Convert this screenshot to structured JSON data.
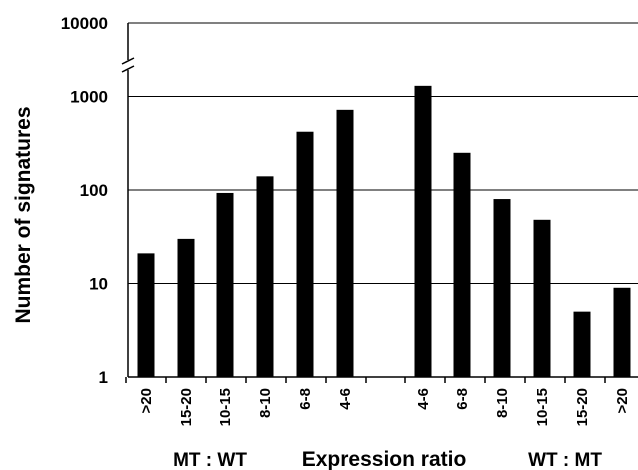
{
  "chart_data": {
    "type": "bar",
    "ylabel": "Number of signatures",
    "xlabel": "Expression ratio",
    "group_labels": [
      "MT : WT",
      "WT : MT"
    ],
    "scale": "log",
    "ylim": [
      1,
      10000
    ],
    "axis_break": true,
    "y_ticks": [
      "1",
      "10",
      "100",
      "1000",
      "10000"
    ],
    "grid": true,
    "colors": {
      "bar": "#000000",
      "axis": "#000000",
      "grid": "#000000"
    },
    "groups": [
      {
        "label": "MT : WT",
        "categories": [
          ">20",
          "15-20",
          "10-15",
          "8-10",
          "6-8",
          "4-6"
        ],
        "values": [
          21,
          30,
          93,
          140,
          420,
          720
        ]
      },
      {
        "label": "WT : MT",
        "categories": [
          "4-6",
          "6-8",
          "8-10",
          "10-15",
          "15-20",
          ">20"
        ],
        "values": [
          1300,
          250,
          80,
          48,
          5,
          9
        ]
      }
    ]
  }
}
